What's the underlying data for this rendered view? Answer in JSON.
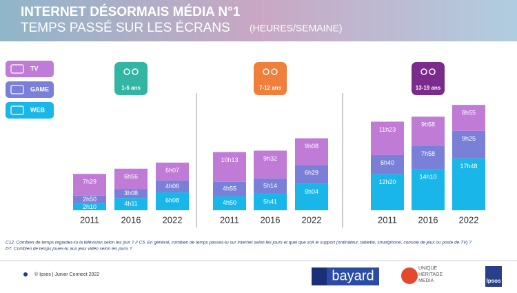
{
  "header": {
    "title": "INTERNET DÉSORMAIS MÉDIA N°1",
    "subtitle": "TEMPS PASSÉ SUR LES ÉCRANS",
    "subtitle_unit": "(HEURES/SEMAINE)"
  },
  "chart_data": {
    "type": "bar",
    "stacked": true,
    "series": [
      {
        "name": "TV",
        "color": "#c07bd6"
      },
      {
        "name": "GAME",
        "color": "#7a80d8"
      },
      {
        "name": "WEB",
        "color": "#19b6ea"
      }
    ],
    "panels": [
      {
        "label": "1-6 ans",
        "color": "#33b5a3",
        "categories": [
          "2011",
          "2016",
          "2022"
        ],
        "series": [
          {
            "values": [
              449,
              416,
              367
            ],
            "value_labels": [
              "7h29",
              "6h56",
              "6h07"
            ]
          },
          {
            "values": [
              170,
              188,
              246
            ],
            "value_labels": [
              "2h50",
              "3h08",
              "4h06"
            ]
          },
          {
            "values": [
              130,
              251,
              368
            ],
            "value_labels": [
              "2h10",
              "4h11",
              "6h08"
            ]
          }
        ]
      },
      {
        "label": "7-12 ans",
        "color": "#f07f3c",
        "categories": [
          "2011",
          "2016",
          "2022"
        ],
        "series": [
          {
            "values": [
              613,
              572,
              548
            ],
            "value_labels": [
              "10h13",
              "9h32",
              "9h08"
            ]
          },
          {
            "values": [
              295,
              314,
              389
            ],
            "value_labels": [
              "4h55",
              "5h14",
              "6h29"
            ]
          },
          {
            "values": [
              290,
              341,
              544
            ],
            "value_labels": [
              "4h50",
              "5h41",
              "9h04"
            ]
          }
        ]
      },
      {
        "label": "13-19 ans",
        "color": "#7a2b8c",
        "categories": [
          "2011",
          "2016",
          "2022"
        ],
        "series": [
          {
            "values": [
              683,
              598,
              535
            ],
            "value_labels": [
              "11h23",
              "9h58",
              "8h55"
            ]
          },
          {
            "values": [
              400,
              478,
              565
            ],
            "value_labels": [
              "6h40",
              "7h58",
              "9h25"
            ]
          },
          {
            "values": [
              740,
              850,
              1068
            ],
            "value_labels": [
              "12h20",
              "14h10",
              "17h48"
            ]
          }
        ]
      }
    ]
  },
  "notes": [
    "C12. Combien de temps regardes-tu la télévision selon les jour ? // C5. En général, combien de temps passes-tu sur Internet selon les jours et quel que soit le support (ordinateur, tablette, smartphone, console de jeux ou poste de TV)  ?",
    "D7. Combien de temps joues-tu aux jeux vidéo selon les jours ?"
  ],
  "footer": {
    "source": "© Ipsos | Junior Connect 2022",
    "logos": [
      "bayard",
      "UNIQUE",
      "HERITAGE",
      "MEDIA",
      "Ipsos"
    ]
  }
}
